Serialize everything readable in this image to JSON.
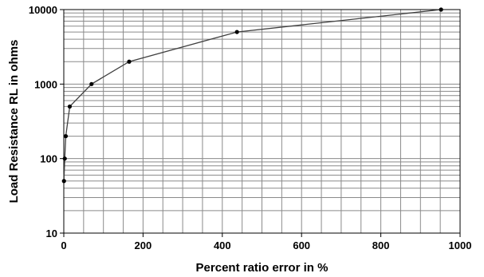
{
  "chart_data": {
    "type": "line",
    "title": "",
    "xlabel": "Percent ratio error in %",
    "ylabel": "Load Resistance RL in ohms",
    "xlim": [
      0,
      1000
    ],
    "ylim": [
      10,
      10000
    ],
    "yscale": "log",
    "grid": true,
    "legend": "none",
    "x_ticks": [
      0,
      200,
      400,
      600,
      800,
      1000
    ],
    "x_tick_labels": [
      "0",
      "200",
      "400",
      "600",
      "800",
      "1000"
    ],
    "y_ticks": [
      10,
      100,
      1000,
      10000
    ],
    "y_tick_labels": [
      "10",
      "100",
      "1000",
      "10000"
    ],
    "series": [
      {
        "x": [
          0.5,
          2.5,
          5,
          15,
          70,
          165,
          437,
          952
        ],
        "y": [
          50,
          100,
          200,
          500,
          1000,
          2000,
          5000,
          10000
        ]
      }
    ]
  },
  "colors": {
    "grid": "#8a8a8a",
    "line": "#404040",
    "marker": "#000000",
    "axis": "#000000"
  }
}
